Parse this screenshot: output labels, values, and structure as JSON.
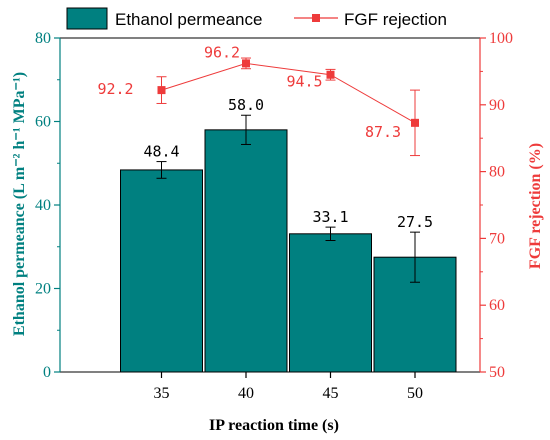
{
  "chart_data": {
    "type": "bar+line",
    "categories": [
      "35",
      "40",
      "45",
      "50"
    ],
    "xlabel": "IP reaction time (s)",
    "grid": false,
    "legend_position": "top",
    "bar_series": {
      "name": "Ethanol permeance",
      "values": [
        48.4,
        58.0,
        33.1,
        27.5
      ],
      "errors": [
        2.0,
        3.5,
        1.6,
        6.0
      ],
      "labels": [
        "48.4",
        "58.0",
        "33.1",
        "27.5"
      ],
      "color": "#008080",
      "axis": "left"
    },
    "line_series": {
      "name": "FGF rejection",
      "values": [
        92.2,
        96.2,
        94.5,
        87.3
      ],
      "errors": [
        2.0,
        0.8,
        0.8,
        4.9
      ],
      "labels": [
        "92.2",
        "96.2",
        "94.5",
        "87.3"
      ],
      "color": "#ee3b3b",
      "axis": "right"
    },
    "left_axis": {
      "label": "Ethanol permeance (L m⁻² h⁻¹ MPa⁻¹)",
      "ylim": [
        0,
        80
      ],
      "ticks": [
        0,
        20,
        40,
        60,
        80
      ],
      "color": "#008080"
    },
    "right_axis": {
      "label": "FGF rejection (%)",
      "ylim": [
        50,
        100
      ],
      "ticks": [
        50,
        60,
        70,
        80,
        90,
        100
      ],
      "color": "#ee3b3b"
    }
  }
}
